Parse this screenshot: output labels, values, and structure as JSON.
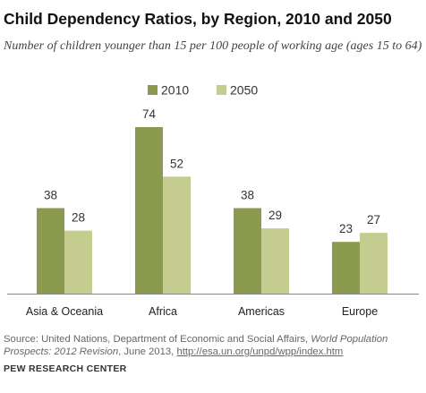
{
  "title": "Child Dependency Ratios, by Region, 2010 and 2050",
  "subtitle": "Number of children younger than 15 per 100 people of working age (ages 15 to 64)",
  "colors": {
    "series_2010": "#8a9a4e",
    "series_2050": "#c4cd8f"
  },
  "chart_data": {
    "type": "bar",
    "categories": [
      "Asia & Oceania",
      "Africa",
      "Americas",
      "Europe"
    ],
    "series": [
      {
        "name": "2010",
        "values": [
          38,
          74,
          38,
          23
        ]
      },
      {
        "name": "2050",
        "values": [
          28,
          52,
          29,
          27
        ]
      }
    ],
    "title": "Child Dependency Ratios, by Region, 2010 and 2050",
    "subtitle": "Number of children younger than 15 per 100 people of working age (ages 15 to 64)",
    "xlabel": "",
    "ylabel": "",
    "ylim": [
      0,
      74
    ],
    "grid": false,
    "legend": "top-center",
    "data_labels": true
  },
  "footer": {
    "source_prefix": "Source: United Nations, Department of Economic and Social Affairs, ",
    "source_italic": "World Population Prospects: 2012 Revision",
    "source_suffix": ", June 2013, ",
    "source_link": "http://esa.un.org/unpd/wpp/index.htm",
    "org": "PEW RESEARCH CENTER"
  }
}
